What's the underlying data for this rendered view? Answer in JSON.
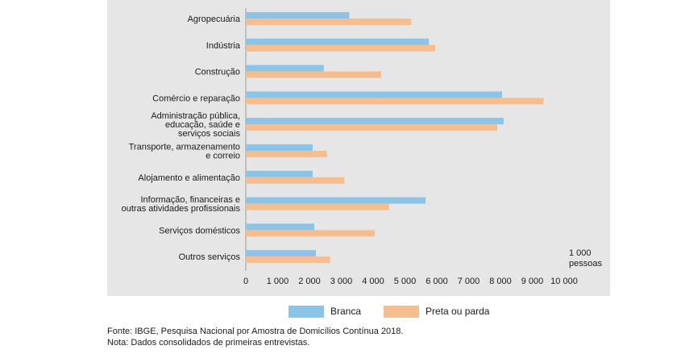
{
  "chart_data": {
    "type": "bar",
    "orientation": "horizontal",
    "categories": [
      [
        "Agropecuária"
      ],
      [
        "Indústria"
      ],
      [
        "Construção"
      ],
      [
        "Comércio e reparação"
      ],
      [
        "Administração pública,",
        "educação, saúde e",
        "serviços sociais"
      ],
      [
        "Transporte, armazenamento",
        "e correio"
      ],
      [
        "Alojamento e alimentação"
      ],
      [
        "Informação, financeiras e",
        "outras atividades profissionais"
      ],
      [
        "Serviços domésticos"
      ],
      [
        "Outros serviços"
      ]
    ],
    "series": [
      {
        "name": "Branca",
        "color": "#8cc4e8",
        "values": [
          3250,
          5750,
          2450,
          8050,
          8100,
          2100,
          2100,
          5650,
          2150,
          2200
        ]
      },
      {
        "name": "Preta ou parda",
        "color": "#f6bd8e",
        "values": [
          5200,
          5950,
          4250,
          9350,
          7900,
          2550,
          3100,
          4500,
          4050,
          2650
        ]
      }
    ],
    "xlim": [
      0,
      10000
    ],
    "xticks": [
      "0",
      "1 000",
      "2 000",
      "3 000",
      "4 000",
      "5 000",
      "6 000",
      "7 000",
      "8 000",
      "9 000",
      "10 000"
    ],
    "xunit": [
      "1 000",
      "pessoas"
    ],
    "grid": false,
    "legend_position": "bottom"
  },
  "notes": {
    "source": "Fonte: IBGE, Pesquisa Nacional por Amostra de Domicílios Contínua 2018.",
    "note": "Nota: Dados consolidados de primeiras entrevistas."
  }
}
